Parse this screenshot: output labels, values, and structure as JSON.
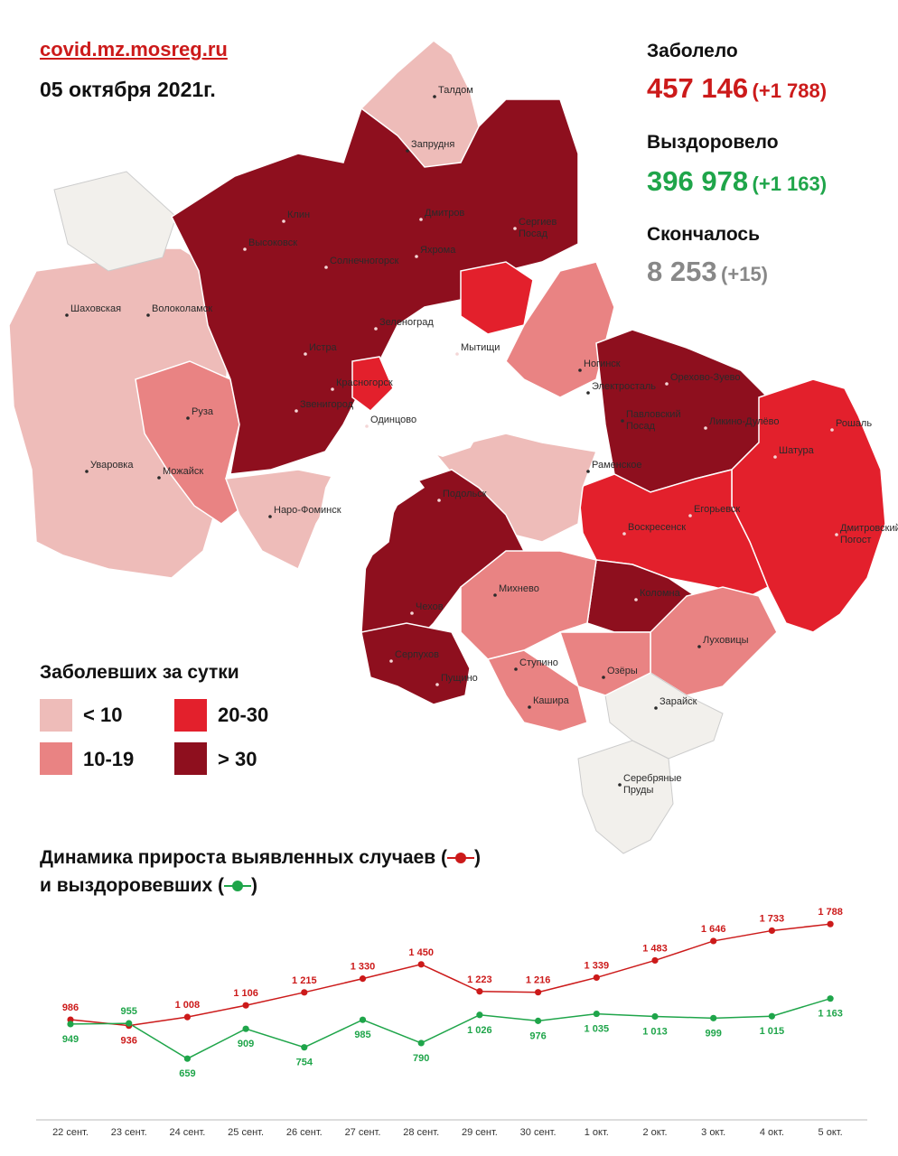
{
  "header": {
    "site": "covid.mz.mosreg.ru",
    "date": "05 октября 2021г."
  },
  "stats": {
    "infected": {
      "label": "Заболело",
      "value": "457 146",
      "delta": "(+1 788)",
      "color": "#cc1a1a"
    },
    "recovered": {
      "label": "Выздоровело",
      "value": "396 978",
      "delta": "(+1 163)",
      "color": "#1fa54a"
    },
    "deaths": {
      "label": "Скончалось",
      "value": "8 253",
      "delta": "(+15)",
      "color": "#888888"
    }
  },
  "legend": {
    "title": "Заболевших за сутки",
    "items": [
      {
        "label": "< 10",
        "color": "#eebcb9"
      },
      {
        "label": "10-19",
        "color": "#e98383"
      },
      {
        "label": "20-30",
        "color": "#e3202c"
      },
      {
        "label": "> 30",
        "color": "#8e0f1e"
      }
    ]
  },
  "map": {
    "towns": [
      "Талдом",
      "Запрудня",
      "Клин",
      "Высоковск",
      "Дмитров",
      "Яхрома",
      "Сергиев Посад",
      "Солнечногорск",
      "Шаховская",
      "Волоколамск",
      "Зеленоград",
      "Мытищи",
      "Истра",
      "Красногорск",
      "Звенигород",
      "Одинцово",
      "Ногинск",
      "Электросталь",
      "Павловский Посад",
      "Орехово-Зуево",
      "Ликино-Дулёво",
      "Рошаль",
      "Шатура",
      "Руза",
      "Уваровка",
      "Можайск",
      "Наро-Фоминск",
      "Раменское",
      "Подольск",
      "Воскресенск",
      "Егорьевск",
      "Дмитровский Погост",
      "Чехов",
      "Михнево",
      "Коломна",
      "Серпухов",
      "Пущино",
      "Ступино",
      "Озёры",
      "Кашира",
      "Луховицы",
      "Зарайск",
      "Серебряные Пруды"
    ]
  },
  "chart": {
    "title_line1": "Динамика прироста выявленных случаев (",
    "title_line1_end": ")",
    "title_line2": "и выздоровевших (",
    "title_line2_end": ")",
    "infected_color": "#cc1a1a",
    "recovered_color": "#1fa54a"
  },
  "chart_data": {
    "type": "line",
    "categories": [
      "22 сент.",
      "23 сент.",
      "24 сент.",
      "25 сент.",
      "26 сент.",
      "27 сент.",
      "28 сент.",
      "29 сент.",
      "30 сент.",
      "1 окт.",
      "2 окт.",
      "3 окт.",
      "4 окт.",
      "5 окт."
    ],
    "series": [
      {
        "key": "infected",
        "values": [
          986,
          936,
          1008,
          1106,
          1215,
          1330,
          1450,
          1223,
          1216,
          1339,
          1483,
          1646,
          1733,
          1788
        ],
        "labels": [
          "986",
          "936",
          "1 008",
          "1 106",
          "1 215",
          "1 330",
          "1 450",
          "1 223",
          "1 216",
          "1 339",
          "1 483",
          "1 646",
          "1 733",
          "1 788"
        ]
      },
      {
        "key": "recovered",
        "values": [
          949,
          955,
          659,
          909,
          754,
          985,
          790,
          1026,
          976,
          1035,
          1013,
          999,
          1015,
          1163
        ],
        "labels": [
          "949",
          "955",
          "659",
          "909",
          "754",
          "985",
          "790",
          "1 026",
          "976",
          "1 035",
          "1 013",
          "999",
          "1 015",
          "1 163"
        ]
      }
    ]
  }
}
